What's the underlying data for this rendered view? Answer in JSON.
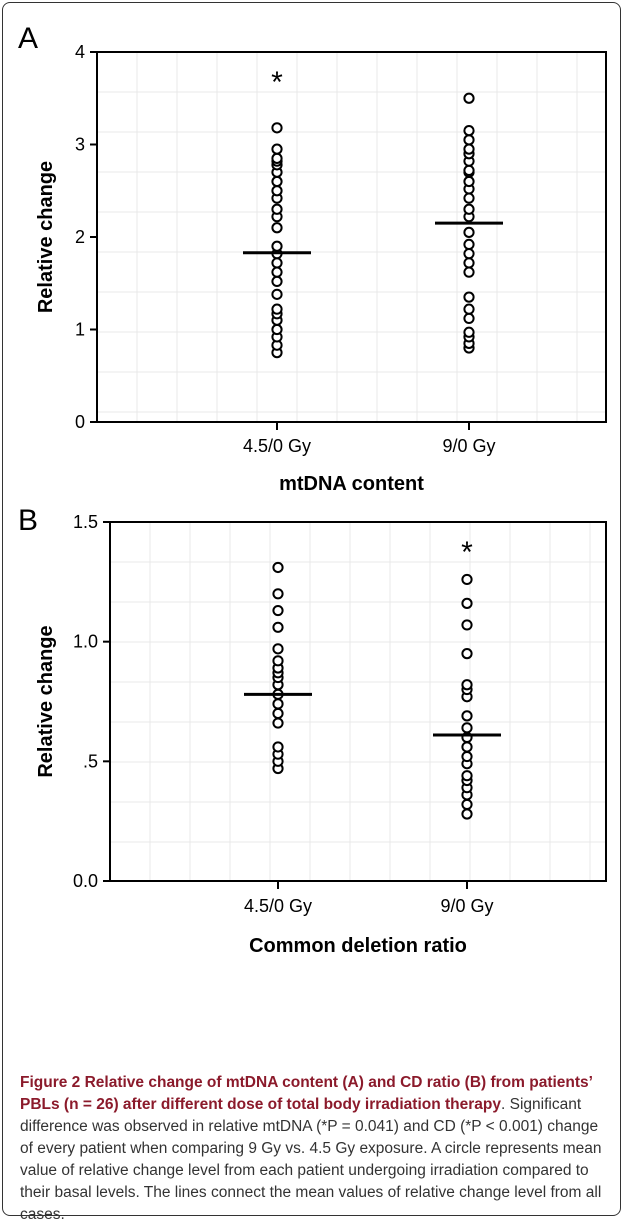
{
  "chart_data": [
    {
      "panel_label": "A",
      "type": "scatter",
      "xlabel": "mtDNA content",
      "ylabel": "Relative change",
      "categories": [
        "4.5/0 Gy",
        "9/0 Gy"
      ],
      "ylim": [
        0,
        4
      ],
      "yticks": [
        "0",
        "1",
        "2",
        "3",
        "4"
      ],
      "ytick_values": [
        0,
        1,
        2,
        3,
        4
      ],
      "series": [
        {
          "category": "4.5/0 Gy",
          "values": [
            0.75,
            0.83,
            0.92,
            1.0,
            1.1,
            1.17,
            1.22,
            1.38,
            1.52,
            1.62,
            1.72,
            1.82,
            1.9,
            2.1,
            2.22,
            2.3,
            2.42,
            2.5,
            2.6,
            2.7,
            2.78,
            2.82,
            2.85,
            2.95,
            3.18
          ],
          "mean": 1.83
        },
        {
          "category": "9/0 Gy",
          "values": [
            0.8,
            0.85,
            0.92,
            0.97,
            1.12,
            1.22,
            1.35,
            1.62,
            1.72,
            1.82,
            1.92,
            2.05,
            2.22,
            2.3,
            2.42,
            2.52,
            2.6,
            2.7,
            2.72,
            2.82,
            2.9,
            2.95,
            3.05,
            3.15,
            3.5
          ],
          "mean": 2.15
        }
      ],
      "significance_marker": "*",
      "significance_category": "4.5/0 Gy"
    },
    {
      "panel_label": "B",
      "type": "scatter",
      "xlabel": "Common deletion ratio",
      "ylabel": "Relative change",
      "categories": [
        "4.5/0 Gy",
        "9/0 Gy"
      ],
      "ylim": [
        0,
        1.5
      ],
      "yticks": [
        "0.0",
        ".5",
        "1.0",
        "1.5"
      ],
      "ytick_values": [
        0,
        0.5,
        1.0,
        1.5
      ],
      "series": [
        {
          "category": "4.5/0 Gy",
          "values": [
            0.47,
            0.5,
            0.53,
            0.56,
            0.66,
            0.7,
            0.74,
            0.78,
            0.82,
            0.85,
            0.87,
            0.89,
            0.92,
            0.97,
            1.06,
            1.13,
            1.2,
            1.31
          ],
          "mean": 0.78
        },
        {
          "category": "9/0 Gy",
          "values": [
            0.28,
            0.32,
            0.36,
            0.39,
            0.42,
            0.44,
            0.49,
            0.52,
            0.56,
            0.6,
            0.64,
            0.69,
            0.77,
            0.8,
            0.82,
            0.95,
            1.07,
            1.16,
            1.26
          ],
          "mean": 0.61
        }
      ],
      "significance_marker": "*",
      "significance_category": "9/0 Gy"
    }
  ],
  "caption": {
    "title": "Figure 2 Relative change of mtDNA content (A) and CD ratio (B) from patients’ PBLs (n = 26) after different dose of total body irradiation therapy",
    "body": ". Significant difference was observed in relative mtDNA (*P = 0.041) and CD (*P < 0.001) change of every patient when comparing 9 Gy vs. 4.5 Gy exposure. A circle represents mean value of relative change level from each patient undergoing irradiation compared to their basal levels. The lines connect the mean values of relative change level from all cases."
  },
  "style": {
    "mark_color": "#000000",
    "caption_title_color": "#8b1a2b",
    "grid_color": "#e8e8e8"
  }
}
